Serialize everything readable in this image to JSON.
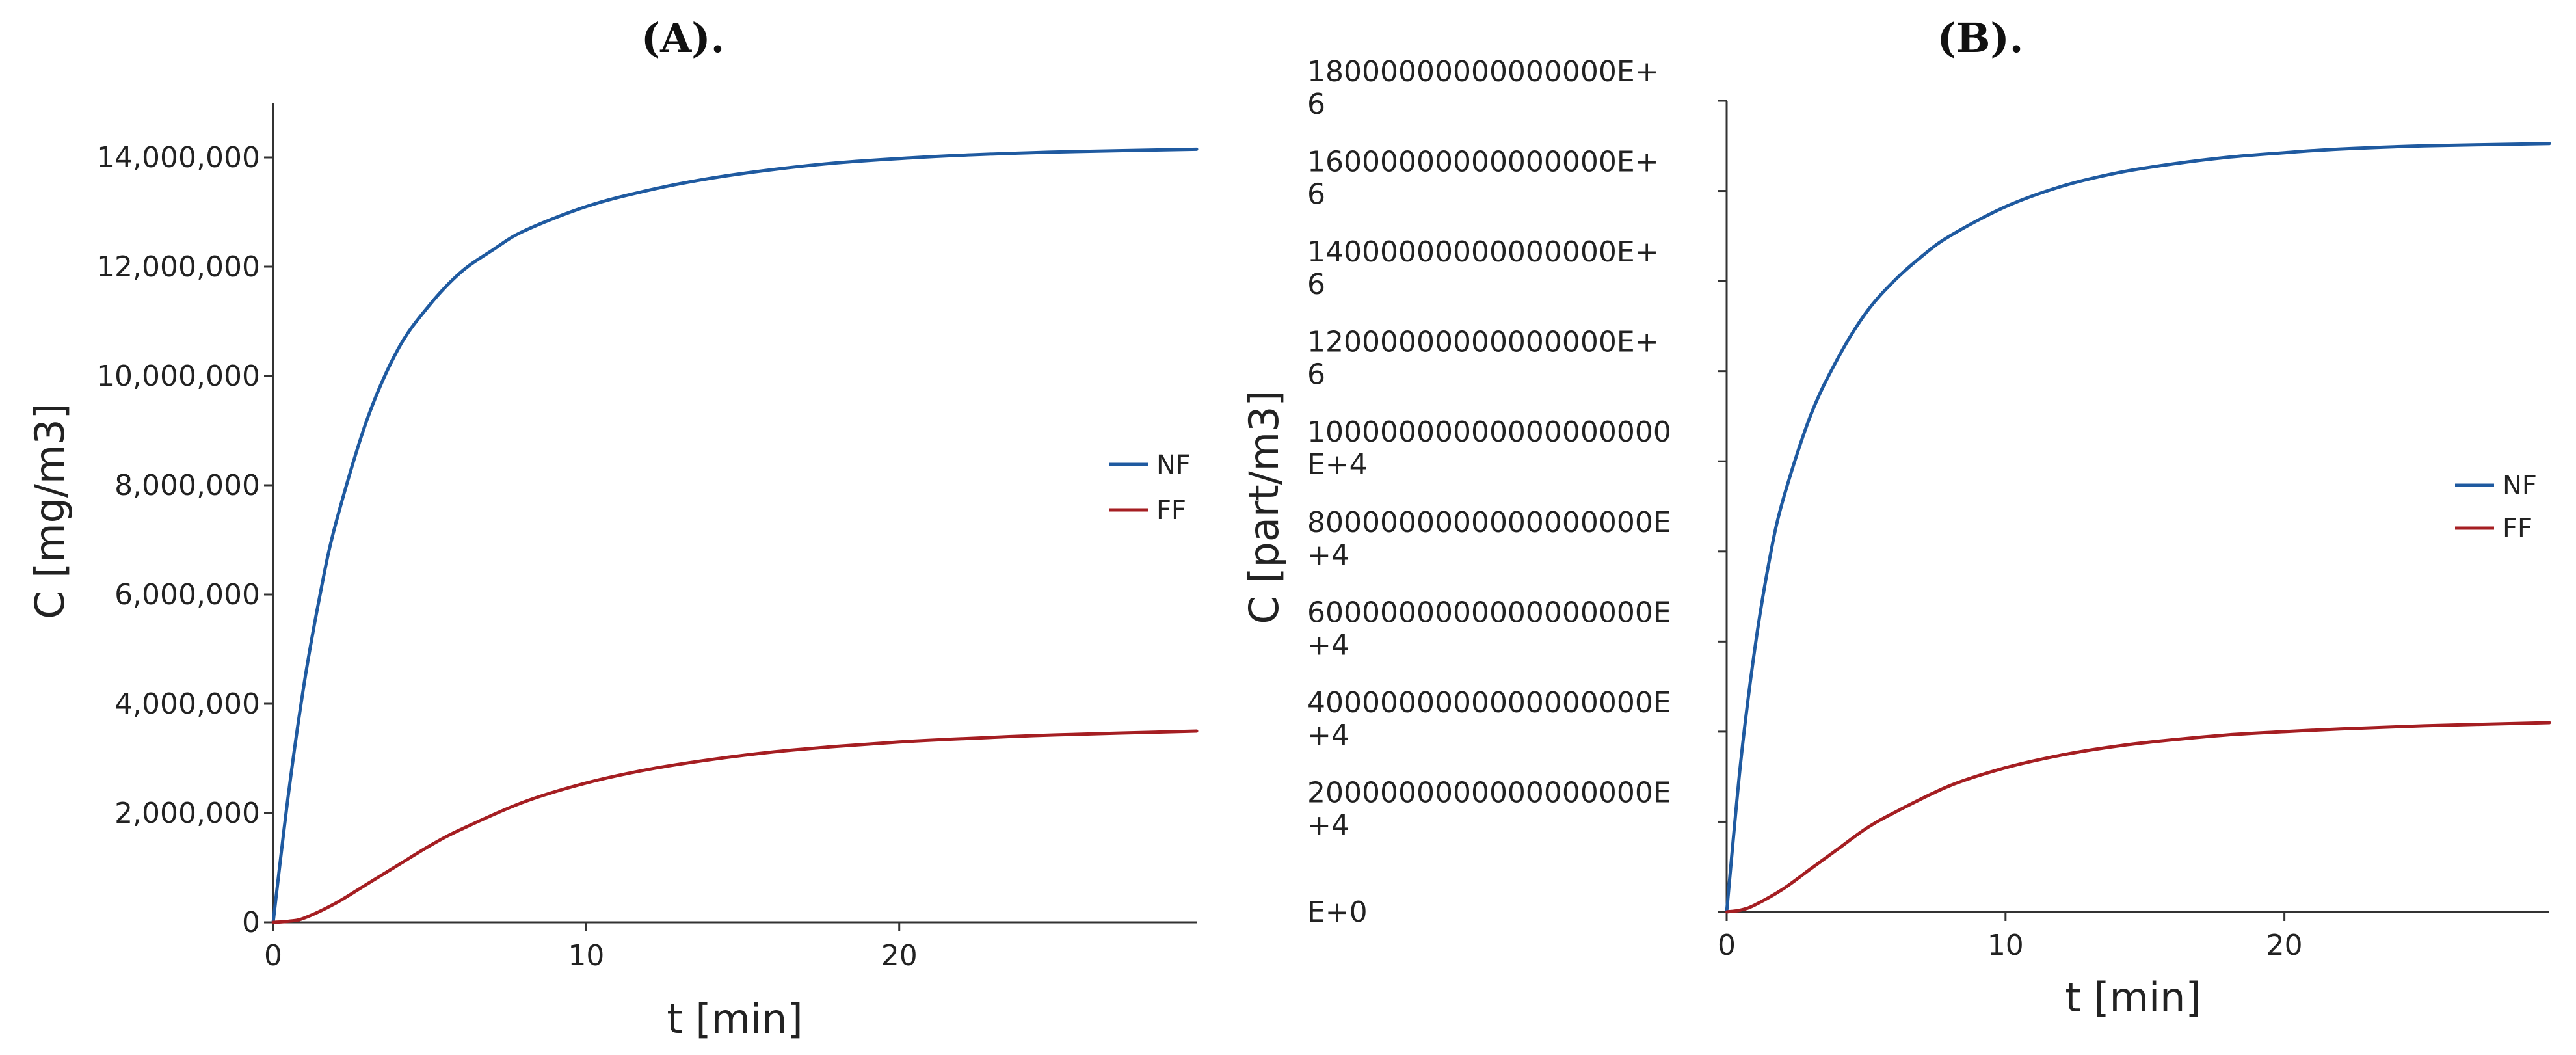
{
  "colors": {
    "NF": "#1f5aa0",
    "FF": "#a51e22"
  },
  "chart_data": [
    {
      "type": "line",
      "title": "(A).",
      "xlabel": "t [min]",
      "ylabel": "C [mg/m3]",
      "xlim": [
        0,
        29.5
      ],
      "ylim": [
        0,
        15000000
      ],
      "xticks": [
        0,
        10,
        20
      ],
      "xtick_labels": [
        "0",
        "10",
        "20"
      ],
      "yticks": [
        0,
        2000000,
        4000000,
        6000000,
        8000000,
        10000000,
        12000000,
        14000000
      ],
      "ytick_labels": [
        [
          "0"
        ],
        [
          "2,000,000"
        ],
        [
          "4,000,000"
        ],
        [
          "6,000,000"
        ],
        [
          "8,000,000"
        ],
        [
          "10,000,000"
        ],
        [
          "12,000,000"
        ],
        [
          "14,000,000"
        ]
      ],
      "legend_position": "center-right",
      "series": [
        {
          "name": "NF",
          "x": [
            0,
            0.5,
            1,
            1.5,
            2,
            3,
            4,
            5,
            6,
            7,
            8,
            10,
            12,
            14,
            16,
            18,
            20,
            22,
            25,
            29.5
          ],
          "y": [
            0,
            2400000,
            4400000,
            6000000,
            7300000,
            9200000,
            10500000,
            11300000,
            11900000,
            12300000,
            12650000,
            13100000,
            13400000,
            13620000,
            13780000,
            13900000,
            13980000,
            14040000,
            14100000,
            14150000
          ]
        },
        {
          "name": "FF",
          "x": [
            0,
            0.5,
            1,
            2,
            3,
            4,
            5,
            6,
            8,
            10,
            12,
            14,
            16,
            18,
            20,
            22,
            25,
            29.5
          ],
          "y": [
            0,
            20000,
            80000,
            350000,
            700000,
            1050000,
            1400000,
            1700000,
            2200000,
            2550000,
            2800000,
            2980000,
            3120000,
            3220000,
            3300000,
            3360000,
            3430000,
            3500000
          ]
        }
      ]
    },
    {
      "type": "line",
      "title": "(B).",
      "xlabel": "t [min]",
      "ylabel": "C [part/m3]",
      "xlim": [
        0,
        29.5
      ],
      "ylim": [
        0,
        18000000000000000000
      ],
      "xticks": [
        0,
        10,
        20
      ],
      "xtick_labels": [
        "0",
        "10",
        "20"
      ],
      "yticks": [
        0,
        2000000000000000000,
        4000000000000000000,
        6000000000000000000,
        8000000000000000000,
        10000000000000000000,
        12000000000000000000,
        14000000000000000000,
        16000000000000000000,
        18000000000000000000
      ],
      "ytick_labels": [
        [
          "E+0"
        ],
        [
          "2000000000000000000E",
          "+4"
        ],
        [
          "4000000000000000000E",
          "+4"
        ],
        [
          "6000000000000000000E",
          "+4"
        ],
        [
          "8000000000000000000E",
          "+4"
        ],
        [
          "10000000000000000000",
          "E+4"
        ],
        [
          "12000000000000000E+",
          "6"
        ],
        [
          "14000000000000000E+",
          "6"
        ],
        [
          "16000000000000000E+",
          "6"
        ],
        [
          "18000000000000000E+",
          "6"
        ]
      ],
      "legend_position": "center-right",
      "series": [
        {
          "name": "NF",
          "x": [
            0,
            0.5,
            1,
            1.5,
            2,
            3,
            4,
            5,
            6,
            7,
            8,
            10,
            12,
            14,
            16,
            18,
            20,
            22,
            25,
            29.5
          ],
          "y": [
            0,
            3300000000000000000,
            5800000000000000000,
            7700000000000000000,
            9100000000000000000,
            11000000000000000000,
            12300000000000000000,
            13300000000000000000,
            14000000000000000000,
            14550000000000000000,
            15000000000000000000,
            15650000000000000000,
            16100000000000000000,
            16400000000000000000,
            16600000000000000000,
            16750000000000000000,
            16850000000000000000,
            16930000000000000000,
            17000000000000000000,
            17050000000000000000
          ]
        },
        {
          "name": "FF",
          "x": [
            0,
            0.5,
            1,
            2,
            3,
            4,
            5,
            6,
            8,
            10,
            12,
            14,
            16,
            18,
            20,
            22,
            25,
            29.5
          ],
          "y": [
            0,
            40000000000000000,
            150000000000000000,
            500000000000000000,
            950000000000000000,
            1400000000000000000,
            1850000000000000000,
            2200000000000000000,
            2800000000000000000,
            3200000000000000000,
            3480000000000000000,
            3680000000000000000,
            3820000000000000000,
            3930000000000000000,
            4000000000000000000,
            4060000000000000000,
            4130000000000000000,
            4200000000000000000
          ]
        }
      ]
    }
  ]
}
